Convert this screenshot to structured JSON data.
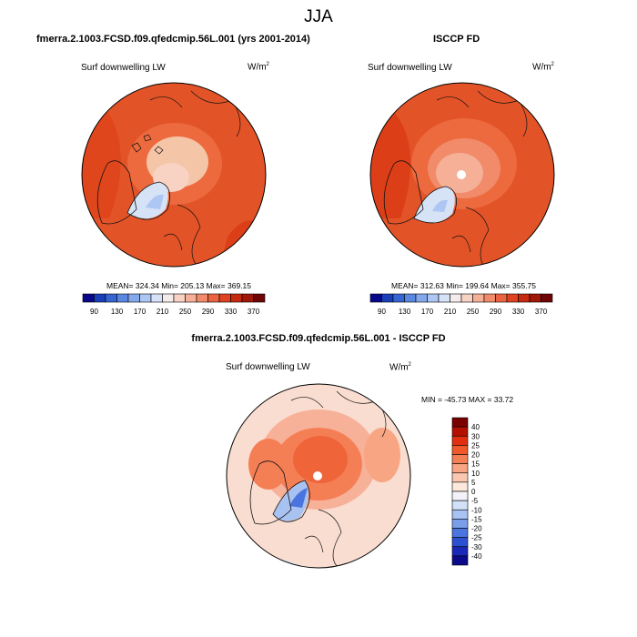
{
  "page": {
    "title": "JJA"
  },
  "panels": {
    "model": {
      "heading": "fmerra.2.1003.FCSD.f09.qfedcmip.56L.001 (yrs 2001-2014)",
      "variable": "Surf downwelling LW",
      "units_base": "W/m",
      "units_exp": "2",
      "stats": "MEAN= 324.34   Min= 205.13   Max= 369.15"
    },
    "obs": {
      "heading": "ISCCP FD",
      "variable": "Surf downwelling LW",
      "units_base": "W/m",
      "units_exp": "2",
      "stats": "MEAN= 312.63   Min= 199.64   Max= 355.75"
    },
    "diff": {
      "heading": "fmerra.2.1003.FCSD.f09.qfedcmip.56L.001 - ISCCP FD",
      "variable": "Surf downwelling LW",
      "units_base": "W/m",
      "units_exp": "2",
      "stats": "MIN = -45.73 MAX =  33.72"
    }
  },
  "colorbars": {
    "absolute": {
      "ticks": [
        "90",
        "130",
        "170",
        "210",
        "250",
        "290",
        "330",
        "370"
      ],
      "colors": [
        "#08088a",
        "#1b3fb8",
        "#3565d0",
        "#5a88e0",
        "#84a8ec",
        "#adc6f3",
        "#d5e2f8",
        "#f4ecea",
        "#f8d2c2",
        "#f5b097",
        "#f18b6a",
        "#ea6441",
        "#e04320",
        "#c62a10",
        "#9f1808",
        "#6e0606"
      ]
    },
    "difference": {
      "ticks": [
        "40",
        "30",
        "25",
        "20",
        "15",
        "10",
        "5",
        "0",
        "-5",
        "-10",
        "-15",
        "-20",
        "-25",
        "-30",
        "-40"
      ],
      "colors": [
        "#7a0000",
        "#b41000",
        "#e03010",
        "#f05a2a",
        "#f57f55",
        "#f8a584",
        "#fac8b0",
        "#fde8dc",
        "#f2f2f8",
        "#d2e0f8",
        "#a8c2f2",
        "#7a9eea",
        "#4a74de",
        "#2c50d2",
        "#1a28b8",
        "#0a0a8a"
      ]
    }
  },
  "colors": {
    "ocean_warm": "#e25427",
    "land_warm": "#ec6a3e",
    "center_model": "#f5c5a8",
    "greenland": "#d6e3f6",
    "coastline": "#111111",
    "diff_bg": "#f9ddd0",
    "diff_hot": "#f0643a"
  }
}
